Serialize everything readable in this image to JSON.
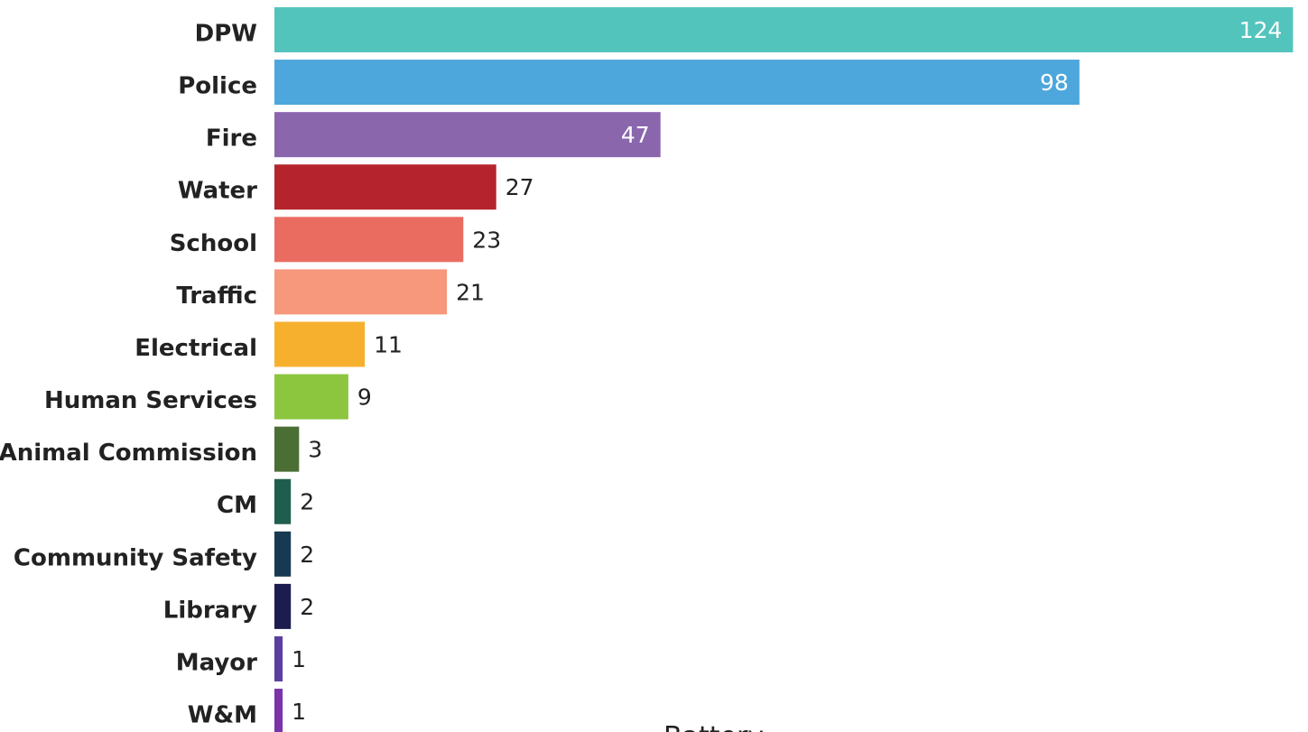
{
  "chart_data": {
    "type": "bar",
    "orientation": "horizontal",
    "categories": [
      "DPW",
      "Police",
      "Fire",
      "Water",
      "School",
      "Traffic",
      "Electrical",
      "Human Services",
      "Animal Commission",
      "CM",
      "Community Safety",
      "Library",
      "Mayor",
      "W&M"
    ],
    "values": [
      124,
      98,
      47,
      27,
      23,
      21,
      11,
      9,
      3,
      2,
      2,
      2,
      1,
      1
    ],
    "colors": [
      "#52c4bc",
      "#4da6dc",
      "#8a66ad",
      "#b5242c",
      "#ea6b60",
      "#f7977c",
      "#f6b02e",
      "#8cc63f",
      "#4a6e34",
      "#1f5e4e",
      "#173a52",
      "#1c1c4e",
      "#5b3fa0",
      "#7a33a8"
    ],
    "xlim": [
      0,
      125
    ],
    "annotation": "Battery"
  }
}
